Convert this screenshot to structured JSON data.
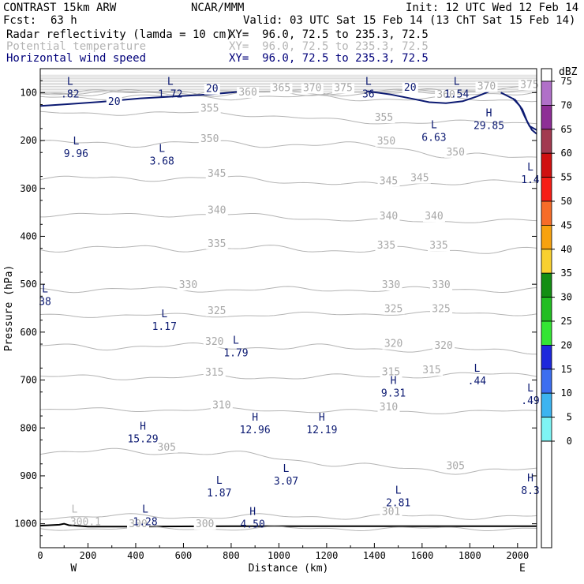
{
  "header": {
    "model": "CONTRAST 15km ARW",
    "org": "NCAR/MMM",
    "init": "Init: 12 UTC Wed 12 Feb 14",
    "fcst_label": "Fcst:",
    "fcst_value": "63 h",
    "valid": "Valid: 03 UTC Sat 15 Feb 14 (13 ChT Sat 15 Feb 14)",
    "fields": [
      {
        "name": "Radar reflectivity (lamda = 10 cm)",
        "xy": "XY=  96.0, 72.5 to 235.3, 72.5",
        "color": "#000000"
      },
      {
        "name": "Potential temperature",
        "xy": "XY=  96.0, 72.5 to 235.3, 72.5",
        "color": "#b4b4b4"
      },
      {
        "name": "Horizontal wind speed",
        "xy": "XY=  96.0, 72.5 to 235.3, 72.5",
        "color": "#00007a"
      }
    ]
  },
  "chart_data": {
    "type": "cross-section",
    "xlabel": "Distance (km)",
    "ylabel": "Pressure (hPa)",
    "xlim": [
      0,
      2080
    ],
    "ylim": [
      50,
      1050
    ],
    "x_ticks": [
      0,
      200,
      400,
      600,
      800,
      1000,
      1200,
      1400,
      1600,
      1800,
      2000
    ],
    "y_ticks": [
      100,
      200,
      300,
      400,
      500,
      600,
      700,
      800,
      900,
      1000
    ],
    "x_end_labels": [
      "W",
      "E"
    ],
    "theta_contours": [
      {
        "value": 300,
        "labels": [
          {
            "text": "300",
            "x": 410,
            "p": 1007
          },
          {
            "text": "300",
            "x": 690,
            "p": 1007
          }
        ]
      },
      {
        "value": 301,
        "labels": [
          {
            "text": "301",
            "x": 1470,
            "p": 982
          }
        ]
      },
      {
        "value": 305,
        "labels": [
          {
            "text": "305",
            "x": 530,
            "p": 847
          },
          {
            "text": "305",
            "x": 1740,
            "p": 886
          }
        ]
      },
      {
        "value": 310,
        "labels": [
          {
            "text": "310",
            "x": 760,
            "p": 759
          },
          {
            "text": "310",
            "x": 1460,
            "p": 763
          }
        ]
      },
      {
        "value": 315,
        "labels": [
          {
            "text": "315",
            "x": 730,
            "p": 691
          },
          {
            "text": "315",
            "x": 1470,
            "p": 690
          },
          {
            "text": "315",
            "x": 1640,
            "p": 686
          }
        ]
      },
      {
        "value": 320,
        "labels": [
          {
            "text": "320",
            "x": 730,
            "p": 627
          },
          {
            "text": "320",
            "x": 1480,
            "p": 631
          },
          {
            "text": "320",
            "x": 1690,
            "p": 635
          }
        ]
      },
      {
        "value": 325,
        "labels": [
          {
            "text": "325",
            "x": 740,
            "p": 562
          },
          {
            "text": "325",
            "x": 1480,
            "p": 558
          },
          {
            "text": "325",
            "x": 1680,
            "p": 558
          }
        ]
      },
      {
        "value": 330,
        "labels": [
          {
            "text": "330",
            "x": 620,
            "p": 508
          },
          {
            "text": "330",
            "x": 1470,
            "p": 508
          },
          {
            "text": "330",
            "x": 1680,
            "p": 508
          }
        ]
      },
      {
        "value": 335,
        "labels": [
          {
            "text": "335",
            "x": 740,
            "p": 422
          },
          {
            "text": "335",
            "x": 1450,
            "p": 426
          },
          {
            "text": "335",
            "x": 1670,
            "p": 426
          }
        ]
      },
      {
        "value": 340,
        "labels": [
          {
            "text": "340",
            "x": 740,
            "p": 352
          },
          {
            "text": "340",
            "x": 1460,
            "p": 365
          },
          {
            "text": "340",
            "x": 1650,
            "p": 365
          }
        ]
      },
      {
        "value": 345,
        "labels": [
          {
            "text": "345",
            "x": 740,
            "p": 276
          },
          {
            "text": "345",
            "x": 1460,
            "p": 291
          },
          {
            "text": "345",
            "x": 1590,
            "p": 285
          }
        ]
      },
      {
        "value": 350,
        "labels": [
          {
            "text": "350",
            "x": 710,
            "p": 203
          },
          {
            "text": "350",
            "x": 1450,
            "p": 208
          },
          {
            "text": "350",
            "x": 1740,
            "p": 231
          }
        ]
      },
      {
        "value": 355,
        "labels": [
          {
            "text": "355",
            "x": 710,
            "p": 140
          },
          {
            "text": "355",
            "x": 1440,
            "p": 159
          }
        ]
      },
      {
        "value": 360,
        "labels": [
          {
            "text": "360",
            "x": 870,
            "p": 106
          },
          {
            "text": "360",
            "x": 1700,
            "p": 111
          }
        ]
      },
      {
        "value": 365,
        "labels": [
          {
            "text": "365",
            "x": 1010,
            "p": 97
          }
        ]
      },
      {
        "value": 370,
        "labels": [
          {
            "text": "370",
            "x": 1140,
            "p": 97
          },
          {
            "text": "370",
            "x": 1870,
            "p": 94
          }
        ]
      },
      {
        "value": 375,
        "labels": [
          {
            "text": "375",
            "x": 1270,
            "p": 97
          },
          {
            "text": "375",
            "x": 2050,
            "p": 90
          }
        ]
      }
    ],
    "wind_contours": [
      {
        "value": 20,
        "labels": [
          {
            "text": "20",
            "x": 310,
            "p": 126
          },
          {
            "text": "20",
            "x": 720,
            "p": 99
          },
          {
            "text": "20",
            "x": 1550,
            "p": 96
          }
        ]
      }
    ],
    "wind_extrema": [
      {
        "type": "L",
        "value": ".82",
        "x": 125,
        "p": 92
      },
      {
        "type": "L",
        "value": "1.72",
        "x": 545,
        "p": 92
      },
      {
        "type": "L",
        "value": "36",
        "x": 1375,
        "p": 92
      },
      {
        "type": "L",
        "value": "1.54",
        "x": 1745,
        "p": 92
      },
      {
        "type": "H",
        "value": "29.85",
        "x": 1880,
        "p": 158
      },
      {
        "type": "L",
        "value": "6.63",
        "x": 1650,
        "p": 183
      },
      {
        "type": "L",
        "value": "9.96",
        "x": 150,
        "p": 216
      },
      {
        "type": "L",
        "value": "3.68",
        "x": 510,
        "p": 232
      },
      {
        "type": "L",
        "value": "1.4",
        "x": 2065,
        "p": 271
      },
      {
        "type": "L",
        "value": "38",
        "x": 20,
        "p": 525
      },
      {
        "type": "L",
        "value": "1.17",
        "x": 520,
        "p": 577
      },
      {
        "type": "L",
        "value": "1.79",
        "x": 820,
        "p": 632
      },
      {
        "type": "L",
        "value": ".44",
        "x": 1830,
        "p": 691
      },
      {
        "type": "H",
        "value": "9.31",
        "x": 1480,
        "p": 716
      },
      {
        "type": "L",
        "value": ".49",
        "x": 2065,
        "p": 732
      },
      {
        "type": "H",
        "value": "12.96",
        "x": 900,
        "p": 793
      },
      {
        "type": "H",
        "value": "12.19",
        "x": 1180,
        "p": 793
      },
      {
        "type": "H",
        "value": "15.29",
        "x": 430,
        "p": 812
      },
      {
        "type": "L",
        "value": "3.07",
        "x": 1030,
        "p": 900
      },
      {
        "type": "L",
        "value": "1.87",
        "x": 750,
        "p": 925
      },
      {
        "type": "L",
        "value": "2.81",
        "x": 1500,
        "p": 945
      },
      {
        "type": "H",
        "value": "8.3",
        "x": 2065,
        "p": 920
      },
      {
        "type": "L",
        "value": "1.28",
        "x": 440,
        "p": 985
      },
      {
        "type": "H",
        "value": "4.50",
        "x": 890,
        "p": 990
      }
    ],
    "theta_extrema": [
      {
        "type": "L",
        "value": "300.1",
        "x": 190,
        "p": 985
      }
    ],
    "colorbar": {
      "title": "dBZ",
      "levels": [
        0,
        5,
        10,
        15,
        20,
        25,
        30,
        35,
        40,
        45,
        50,
        55,
        60,
        65,
        70,
        75
      ],
      "colors": [
        "#ffffff",
        "#7ef4f4",
        "#3cb4f0",
        "#3c6ef0",
        "#1e28dc",
        "#34e534",
        "#22be22",
        "#138e13",
        "#f8d030",
        "#f7a20f",
        "#f66c28",
        "#f61e16",
        "#d01010",
        "#a23a50",
        "#8e2e96",
        "#b070c8",
        "#ffffff"
      ]
    }
  }
}
